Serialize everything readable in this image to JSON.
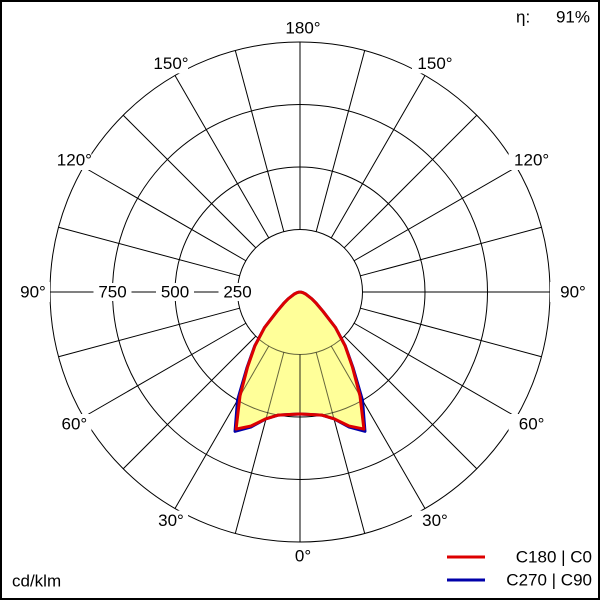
{
  "chart_data": {
    "type": "polar",
    "unit_label": "cd/klm",
    "efficiency": {
      "label": "η:",
      "value": 91,
      "value_label": "91%"
    },
    "rlim": [
      0,
      1000
    ],
    "rticks": [
      250,
      500,
      750
    ],
    "angle_gridlines": [
      0,
      15,
      30,
      45,
      60,
      75,
      90,
      105,
      120,
      135,
      150,
      165,
      180
    ],
    "angle_ticks": [
      {
        "value": 0,
        "label": "0°"
      },
      {
        "value": 30,
        "label": "30°"
      },
      {
        "value": 60,
        "label": "60°"
      },
      {
        "value": 90,
        "label": "90°"
      },
      {
        "value": 120,
        "label": "120°"
      },
      {
        "value": 150,
        "label": "150°"
      },
      {
        "value": 180,
        "label": "180°"
      }
    ],
    "fill_color": "#ffff99",
    "angles": [
      0,
      5,
      10,
      15,
      20,
      25,
      30,
      35,
      40,
      45,
      50,
      55,
      60,
      70,
      80,
      90
    ],
    "series": [
      {
        "name": "C270 | C90",
        "color": "#0000aa",
        "values": [
          488,
          492,
          500,
          525,
          575,
          615,
          500,
          370,
          282,
          200,
          120,
          80,
          55,
          25,
          10,
          0
        ]
      },
      {
        "name": "C180 | C0",
        "color": "#dd0000",
        "values": [
          488,
          492,
          500,
          525,
          570,
          605,
          480,
          365,
          280,
          200,
          120,
          80,
          55,
          25,
          10,
          0
        ]
      }
    ]
  }
}
